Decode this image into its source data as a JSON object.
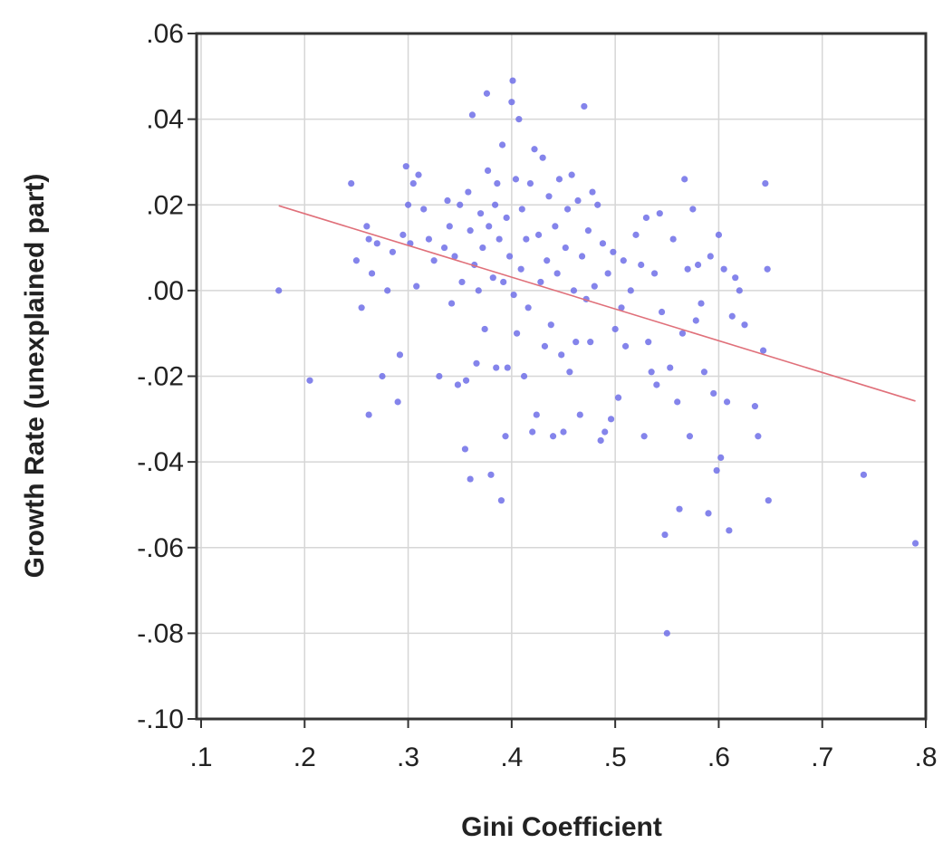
{
  "chart_data": {
    "type": "scatter",
    "title": "",
    "xlabel": "Gini Coefficient",
    "ylabel": "Growth Rate (unexplained part)",
    "xlim": [
      0.1,
      0.8
    ],
    "ylim": [
      -0.1,
      0.06
    ],
    "x_ticks": [
      0.1,
      0.2,
      0.3,
      0.4,
      0.5,
      0.6,
      0.7,
      0.8
    ],
    "x_tick_labels": [
      ".1",
      ".2",
      ".3",
      ".4",
      ".5",
      ".6",
      ".7",
      ".8"
    ],
    "y_ticks": [
      0.06,
      0.04,
      0.02,
      0.0,
      -0.02,
      -0.04,
      -0.06,
      -0.08,
      -0.1
    ],
    "y_tick_labels": [
      ".06",
      ".04",
      ".02",
      ".00",
      "-.02",
      "-.04",
      "-.06",
      "-.08",
      "-.10"
    ],
    "grid": true,
    "point_color": "#6f6fe8",
    "line_color": "#e0707a",
    "fit_line": {
      "x": [
        0.175,
        0.79
      ],
      "y": [
        0.0198,
        -0.0258
      ]
    },
    "points": [
      {
        "x": 0.175,
        "y": 0.0
      },
      {
        "x": 0.205,
        "y": -0.021
      },
      {
        "x": 0.245,
        "y": 0.025
      },
      {
        "x": 0.25,
        "y": 0.007
      },
      {
        "x": 0.255,
        "y": -0.004
      },
      {
        "x": 0.26,
        "y": 0.015
      },
      {
        "x": 0.262,
        "y": 0.012
      },
      {
        "x": 0.265,
        "y": 0.004
      },
      {
        "x": 0.262,
        "y": -0.029
      },
      {
        "x": 0.27,
        "y": 0.011
      },
      {
        "x": 0.275,
        "y": -0.02
      },
      {
        "x": 0.28,
        "y": 0.0
      },
      {
        "x": 0.285,
        "y": 0.009
      },
      {
        "x": 0.29,
        "y": -0.026
      },
      {
        "x": 0.292,
        "y": -0.015
      },
      {
        "x": 0.295,
        "y": 0.013
      },
      {
        "x": 0.298,
        "y": 0.029
      },
      {
        "x": 0.3,
        "y": 0.02
      },
      {
        "x": 0.302,
        "y": 0.011
      },
      {
        "x": 0.305,
        "y": 0.025
      },
      {
        "x": 0.308,
        "y": 0.001
      },
      {
        "x": 0.31,
        "y": 0.027
      },
      {
        "x": 0.315,
        "y": 0.019
      },
      {
        "x": 0.32,
        "y": 0.012
      },
      {
        "x": 0.325,
        "y": 0.007
      },
      {
        "x": 0.33,
        "y": -0.02
      },
      {
        "x": 0.335,
        "y": 0.01
      },
      {
        "x": 0.338,
        "y": 0.021
      },
      {
        "x": 0.34,
        "y": 0.015
      },
      {
        "x": 0.342,
        "y": -0.003
      },
      {
        "x": 0.345,
        "y": 0.008
      },
      {
        "x": 0.348,
        "y": -0.022
      },
      {
        "x": 0.35,
        "y": 0.02
      },
      {
        "x": 0.352,
        "y": 0.002
      },
      {
        "x": 0.355,
        "y": -0.037
      },
      {
        "x": 0.356,
        "y": -0.021
      },
      {
        "x": 0.358,
        "y": 0.023
      },
      {
        "x": 0.36,
        "y": 0.014
      },
      {
        "x": 0.36,
        "y": -0.044
      },
      {
        "x": 0.362,
        "y": 0.041
      },
      {
        "x": 0.364,
        "y": 0.006
      },
      {
        "x": 0.366,
        "y": -0.017
      },
      {
        "x": 0.368,
        "y": 0.0
      },
      {
        "x": 0.37,
        "y": 0.018
      },
      {
        "x": 0.372,
        "y": 0.01
      },
      {
        "x": 0.374,
        "y": -0.009
      },
      {
        "x": 0.376,
        "y": 0.046
      },
      {
        "x": 0.377,
        "y": 0.028
      },
      {
        "x": 0.378,
        "y": 0.015
      },
      {
        "x": 0.38,
        "y": -0.043
      },
      {
        "x": 0.382,
        "y": 0.003
      },
      {
        "x": 0.384,
        "y": 0.02
      },
      {
        "x": 0.385,
        "y": -0.018
      },
      {
        "x": 0.386,
        "y": 0.025
      },
      {
        "x": 0.388,
        "y": 0.012
      },
      {
        "x": 0.39,
        "y": -0.049
      },
      {
        "x": 0.391,
        "y": 0.034
      },
      {
        "x": 0.392,
        "y": 0.002
      },
      {
        "x": 0.394,
        "y": -0.034
      },
      {
        "x": 0.395,
        "y": 0.017
      },
      {
        "x": 0.396,
        "y": -0.018
      },
      {
        "x": 0.398,
        "y": 0.008
      },
      {
        "x": 0.4,
        "y": 0.044
      },
      {
        "x": 0.401,
        "y": 0.049
      },
      {
        "x": 0.402,
        "y": -0.001
      },
      {
        "x": 0.404,
        "y": 0.026
      },
      {
        "x": 0.405,
        "y": -0.01
      },
      {
        "x": 0.407,
        "y": 0.04
      },
      {
        "x": 0.409,
        "y": 0.005
      },
      {
        "x": 0.41,
        "y": 0.019
      },
      {
        "x": 0.412,
        "y": -0.02
      },
      {
        "x": 0.414,
        "y": 0.012
      },
      {
        "x": 0.416,
        "y": -0.004
      },
      {
        "x": 0.418,
        "y": 0.025
      },
      {
        "x": 0.42,
        "y": -0.033
      },
      {
        "x": 0.422,
        "y": 0.033
      },
      {
        "x": 0.424,
        "y": -0.029
      },
      {
        "x": 0.426,
        "y": 0.013
      },
      {
        "x": 0.428,
        "y": 0.002
      },
      {
        "x": 0.43,
        "y": 0.031
      },
      {
        "x": 0.432,
        "y": -0.013
      },
      {
        "x": 0.434,
        "y": 0.007
      },
      {
        "x": 0.436,
        "y": 0.022
      },
      {
        "x": 0.438,
        "y": -0.008
      },
      {
        "x": 0.44,
        "y": -0.034
      },
      {
        "x": 0.442,
        "y": 0.015
      },
      {
        "x": 0.444,
        "y": 0.004
      },
      {
        "x": 0.446,
        "y": 0.026
      },
      {
        "x": 0.448,
        "y": -0.015
      },
      {
        "x": 0.45,
        "y": -0.033
      },
      {
        "x": 0.452,
        "y": 0.01
      },
      {
        "x": 0.454,
        "y": 0.019
      },
      {
        "x": 0.456,
        "y": -0.019
      },
      {
        "x": 0.458,
        "y": 0.027
      },
      {
        "x": 0.46,
        "y": 0.0
      },
      {
        "x": 0.462,
        "y": -0.012
      },
      {
        "x": 0.464,
        "y": 0.021
      },
      {
        "x": 0.466,
        "y": -0.029
      },
      {
        "x": 0.468,
        "y": 0.008
      },
      {
        "x": 0.47,
        "y": 0.043
      },
      {
        "x": 0.472,
        "y": -0.002
      },
      {
        "x": 0.474,
        "y": 0.014
      },
      {
        "x": 0.476,
        "y": -0.012
      },
      {
        "x": 0.478,
        "y": 0.023
      },
      {
        "x": 0.48,
        "y": 0.001
      },
      {
        "x": 0.483,
        "y": 0.02
      },
      {
        "x": 0.486,
        "y": -0.035
      },
      {
        "x": 0.488,
        "y": 0.011
      },
      {
        "x": 0.49,
        "y": -0.033
      },
      {
        "x": 0.493,
        "y": 0.004
      },
      {
        "x": 0.496,
        "y": -0.03
      },
      {
        "x": 0.498,
        "y": 0.009
      },
      {
        "x": 0.5,
        "y": -0.009
      },
      {
        "x": 0.503,
        "y": -0.025
      },
      {
        "x": 0.506,
        "y": -0.004
      },
      {
        "x": 0.508,
        "y": 0.007
      },
      {
        "x": 0.51,
        "y": -0.013
      },
      {
        "x": 0.515,
        "y": 0.0
      },
      {
        "x": 0.52,
        "y": 0.013
      },
      {
        "x": 0.525,
        "y": 0.006
      },
      {
        "x": 0.528,
        "y": -0.034
      },
      {
        "x": 0.53,
        "y": 0.017
      },
      {
        "x": 0.532,
        "y": -0.012
      },
      {
        "x": 0.535,
        "y": -0.019
      },
      {
        "x": 0.538,
        "y": 0.004
      },
      {
        "x": 0.54,
        "y": -0.022
      },
      {
        "x": 0.543,
        "y": 0.018
      },
      {
        "x": 0.545,
        "y": -0.005
      },
      {
        "x": 0.548,
        "y": -0.057
      },
      {
        "x": 0.55,
        "y": -0.08
      },
      {
        "x": 0.553,
        "y": -0.018
      },
      {
        "x": 0.556,
        "y": 0.012
      },
      {
        "x": 0.56,
        "y": -0.026
      },
      {
        "x": 0.562,
        "y": -0.051
      },
      {
        "x": 0.565,
        "y": -0.01
      },
      {
        "x": 0.567,
        "y": 0.026
      },
      {
        "x": 0.57,
        "y": 0.005
      },
      {
        "x": 0.572,
        "y": -0.034
      },
      {
        "x": 0.575,
        "y": 0.019
      },
      {
        "x": 0.578,
        "y": -0.007
      },
      {
        "x": 0.58,
        "y": 0.006
      },
      {
        "x": 0.583,
        "y": -0.003
      },
      {
        "x": 0.586,
        "y": -0.019
      },
      {
        "x": 0.59,
        "y": -0.052
      },
      {
        "x": 0.592,
        "y": 0.008
      },
      {
        "x": 0.595,
        "y": -0.024
      },
      {
        "x": 0.598,
        "y": -0.042
      },
      {
        "x": 0.6,
        "y": 0.013
      },
      {
        "x": 0.602,
        "y": -0.039
      },
      {
        "x": 0.605,
        "y": 0.005
      },
      {
        "x": 0.608,
        "y": -0.026
      },
      {
        "x": 0.61,
        "y": -0.056
      },
      {
        "x": 0.613,
        "y": -0.006
      },
      {
        "x": 0.616,
        "y": 0.003
      },
      {
        "x": 0.62,
        "y": 0.0
      },
      {
        "x": 0.625,
        "y": -0.008
      },
      {
        "x": 0.635,
        "y": -0.027
      },
      {
        "x": 0.638,
        "y": -0.034
      },
      {
        "x": 0.643,
        "y": -0.014
      },
      {
        "x": 0.645,
        "y": 0.025
      },
      {
        "x": 0.647,
        "y": 0.005
      },
      {
        "x": 0.648,
        "y": -0.049
      },
      {
        "x": 0.74,
        "y": -0.043
      },
      {
        "x": 0.79,
        "y": -0.059
      }
    ]
  }
}
